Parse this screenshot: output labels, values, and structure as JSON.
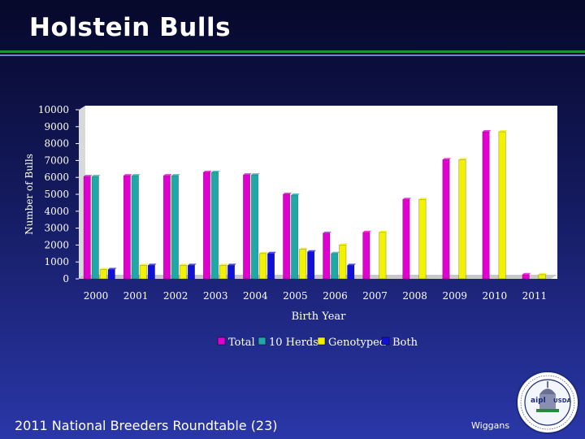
{
  "slide": {
    "title": "Holstein Bulls",
    "footer": "2011 National Breeders Roundtable (23)",
    "author": "Wiggans",
    "seal_text": "aipl USDA"
  },
  "chart_data": {
    "type": "bar",
    "title": "",
    "xlabel": "Birth Year",
    "ylabel": "Number of Bulls",
    "ylim": [
      0,
      10000
    ],
    "yticks": [
      0,
      1000,
      2000,
      3000,
      4000,
      5000,
      6000,
      7000,
      8000,
      9000,
      10000
    ],
    "grid": false,
    "legend_position": "bottom",
    "categories": [
      "2000",
      "2001",
      "2002",
      "2003",
      "2004",
      "2005",
      "2006",
      "2007",
      "2008",
      "2009",
      "2010",
      "2011"
    ],
    "series": [
      {
        "name": "Total",
        "color": "#e000d0",
        "values": [
          6050,
          6100,
          6100,
          6300,
          6150,
          5000,
          2700,
          2750,
          4700,
          7050,
          8700,
          250
        ]
      },
      {
        "name": "10 Herds",
        "color": "#20a8a8",
        "values": [
          6050,
          6100,
          6100,
          6300,
          6150,
          4950,
          1500,
          0,
          0,
          0,
          0,
          0
        ]
      },
      {
        "name": "Genotyped",
        "color": "#f2f200",
        "values": [
          550,
          800,
          800,
          800,
          1500,
          1750,
          2000,
          2750,
          4700,
          7050,
          8700,
          250
        ]
      },
      {
        "name": "Both",
        "color": "#1010d8",
        "values": [
          550,
          800,
          800,
          800,
          1500,
          1600,
          800,
          0,
          0,
          0,
          0,
          0
        ]
      }
    ]
  }
}
